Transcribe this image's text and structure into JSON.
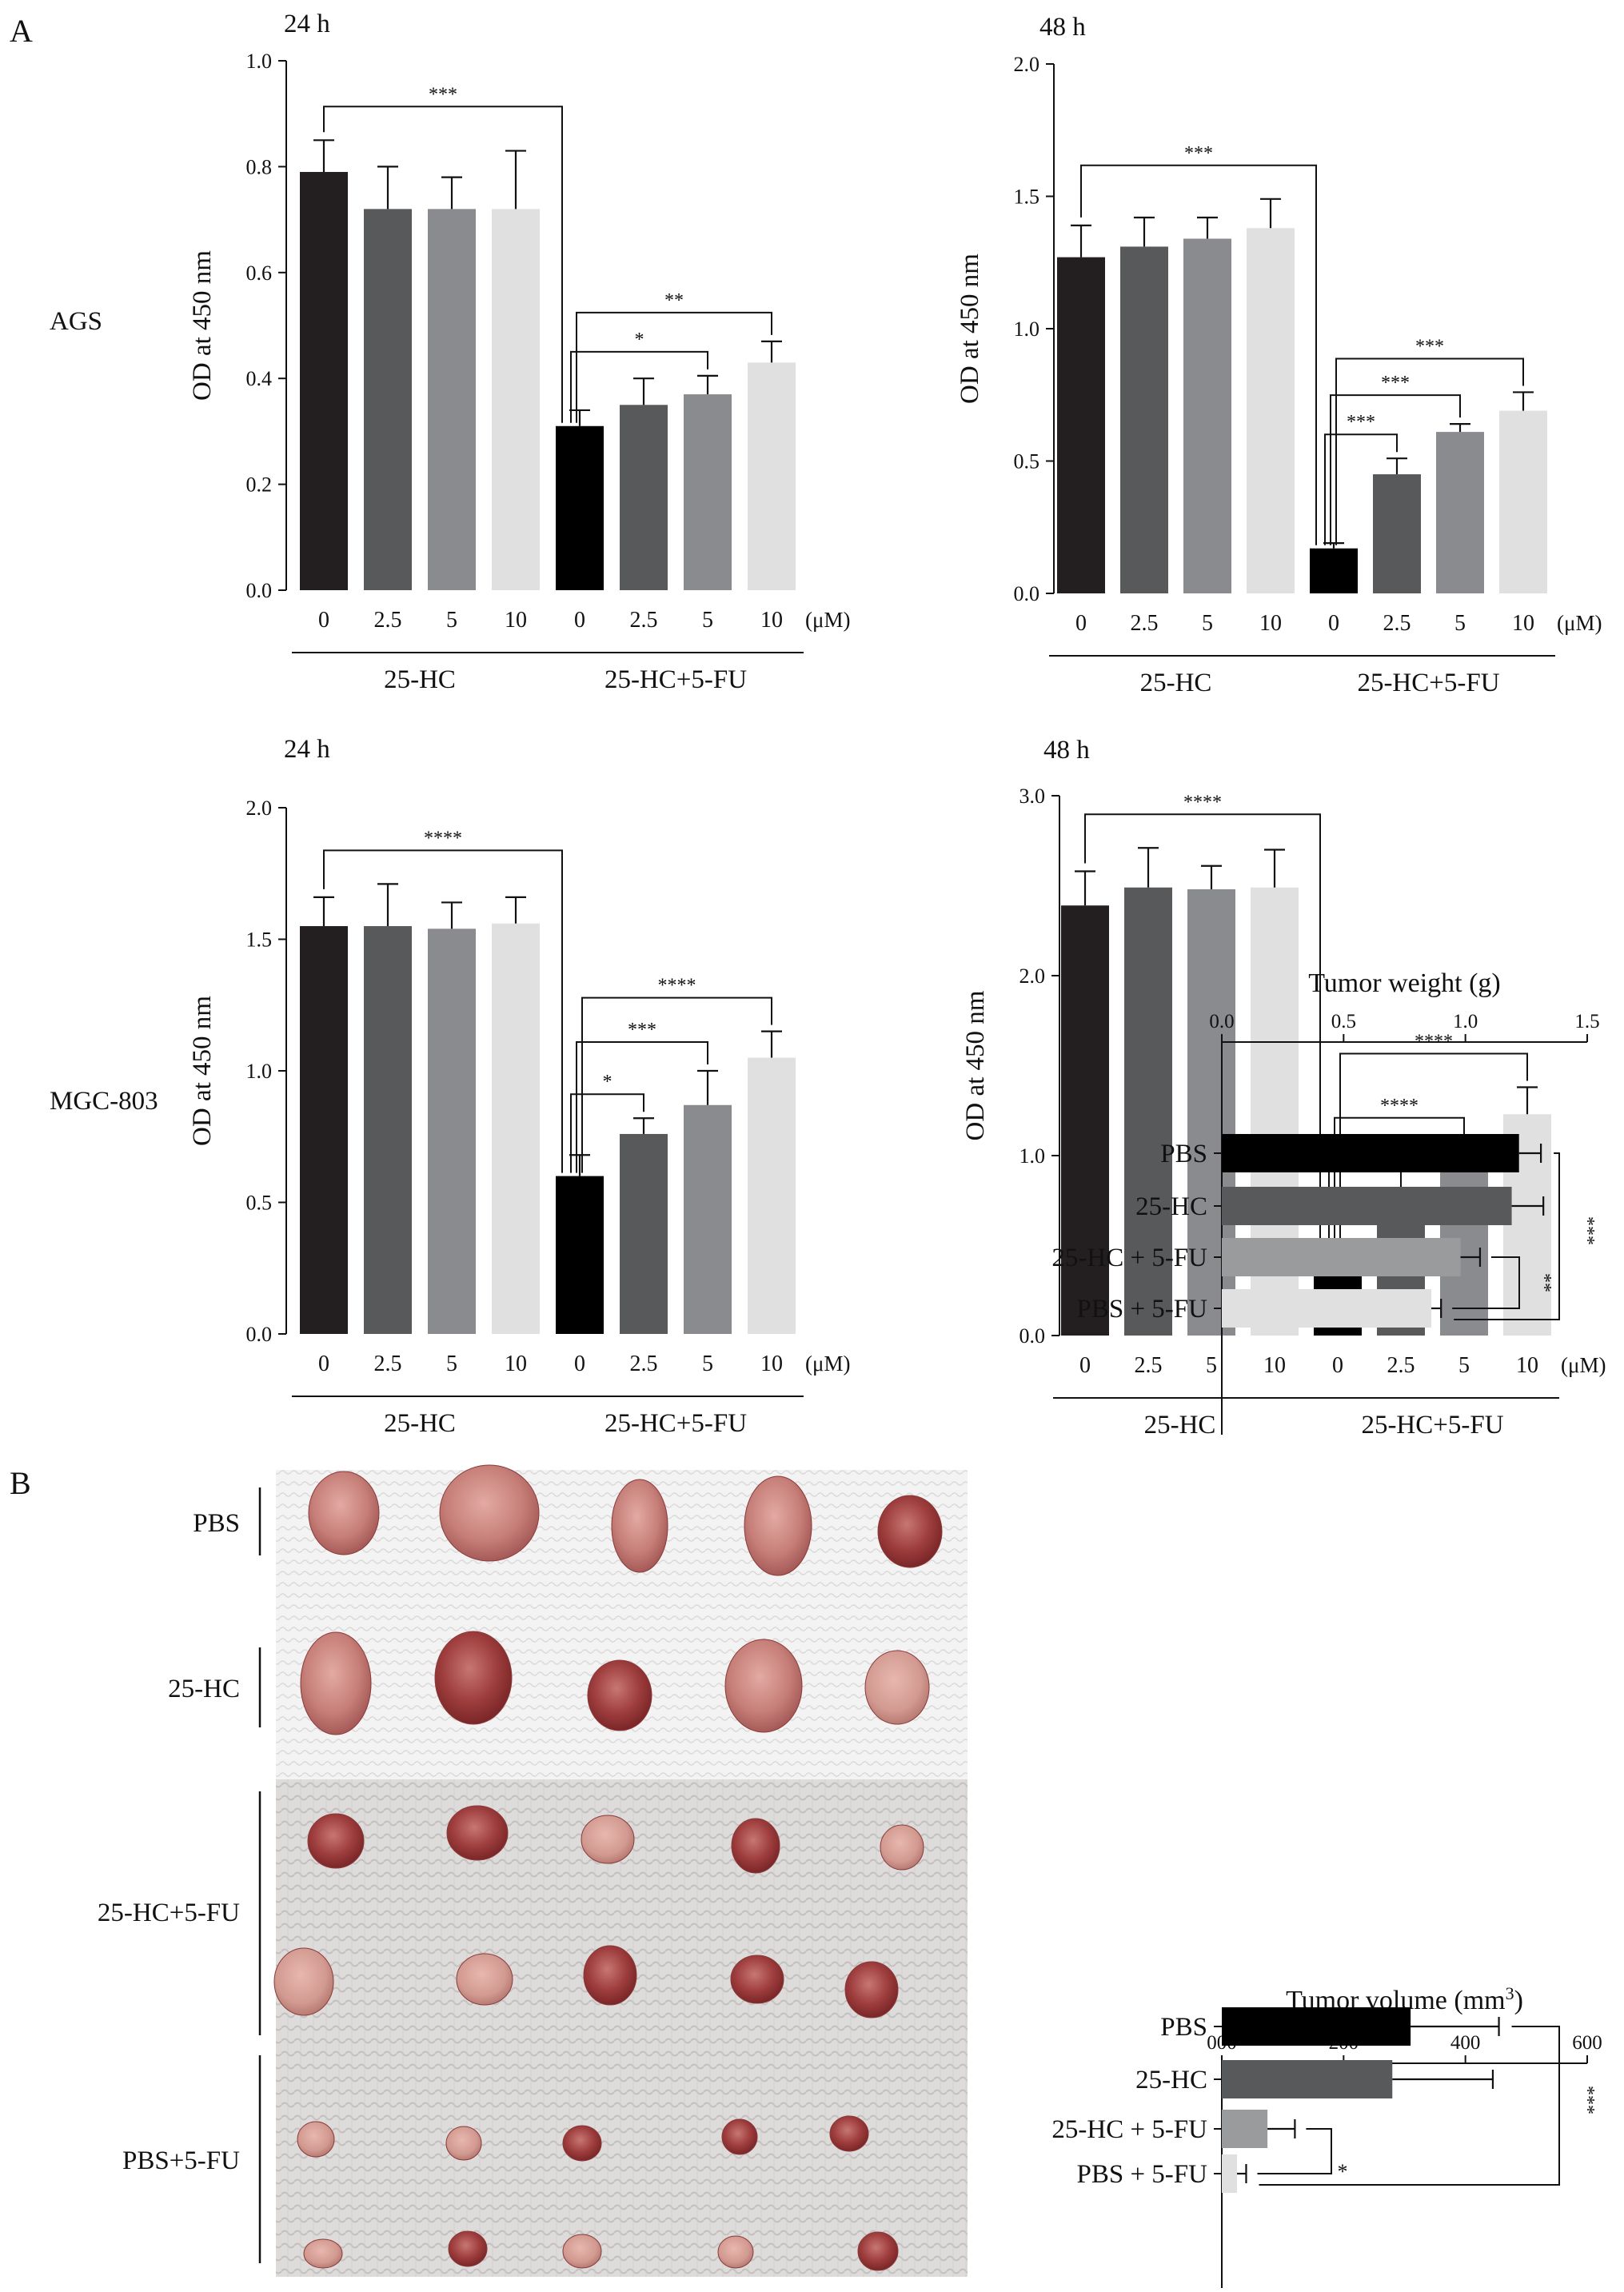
{
  "figure": {
    "panel_a_letter": "A",
    "panel_b_letter": "B",
    "row_labels": [
      "AGS",
      "MGC-803"
    ],
    "photo_labels": [
      "PBS",
      "25-HC",
      "25-HC+5-FU",
      "PBS+5-FU"
    ]
  },
  "colors": {
    "c1": "#231f20",
    "c2": "#58595b",
    "c3": "#8a8b8e",
    "c4": "#e0e0e0",
    "treat0": "#000000"
  },
  "chart_data": [
    {
      "id": "ags-24h",
      "type": "bar",
      "title": "24 h",
      "ylabel": "OD at 450 nm",
      "ylim": [
        0,
        1.0
      ],
      "yticks": [
        "0.0",
        "0.2",
        "0.4",
        "0.6",
        "0.8",
        "1.0"
      ],
      "categories": [
        "0",
        "2.5",
        "5",
        "10",
        "0",
        "2.5",
        "5",
        "10"
      ],
      "unit": "(μM)",
      "groups": [
        "25-HC",
        "25-HC+5-FU"
      ],
      "values": [
        0.79,
        0.72,
        0.72,
        0.72,
        0.31,
        0.35,
        0.37,
        0.43
      ],
      "errors": [
        0.06,
        0.08,
        0.06,
        0.11,
        0.03,
        0.05,
        0.035,
        0.04
      ],
      "significance": [
        {
          "from": 0,
          "to": 4,
          "label": "***"
        },
        {
          "from": 4,
          "to": 6,
          "label": "*"
        },
        {
          "from": 4,
          "to": 7,
          "label": "**"
        }
      ]
    },
    {
      "id": "ags-48h",
      "type": "bar",
      "title": "48 h",
      "ylabel": "OD at 450 nm",
      "ylim": [
        0,
        2.0
      ],
      "yticks": [
        "0.0",
        "0.5",
        "1.0",
        "1.5",
        "2.0"
      ],
      "categories": [
        "0",
        "2.5",
        "5",
        "10",
        "0",
        "2.5",
        "5",
        "10"
      ],
      "unit": "(μM)",
      "groups": [
        "25-HC",
        "25-HC+5-FU"
      ],
      "values": [
        1.27,
        1.31,
        1.34,
        1.38,
        0.17,
        0.45,
        0.61,
        0.69
      ],
      "errors": [
        0.12,
        0.11,
        0.08,
        0.11,
        0.02,
        0.06,
        0.03,
        0.07
      ],
      "significance": [
        {
          "from": 0,
          "to": 4,
          "label": "***"
        },
        {
          "from": 4,
          "to": 5,
          "label": "***"
        },
        {
          "from": 4,
          "to": 6,
          "label": "***"
        },
        {
          "from": 4,
          "to": 7,
          "label": "***"
        }
      ]
    },
    {
      "id": "mgc-24h",
      "type": "bar",
      "title": "24 h",
      "ylabel": "OD at 450 nm",
      "ylim": [
        0,
        2.0
      ],
      "yticks": [
        "0.0",
        "0.5",
        "1.0",
        "1.5",
        "2.0"
      ],
      "categories": [
        "0",
        "2.5",
        "5",
        "10",
        "0",
        "2.5",
        "5",
        "10"
      ],
      "unit": "(μM)",
      "groups": [
        "25-HC",
        "25-HC+5-FU"
      ],
      "values": [
        1.55,
        1.55,
        1.54,
        1.56,
        0.6,
        0.76,
        0.87,
        1.05
      ],
      "errors": [
        0.11,
        0.16,
        0.1,
        0.1,
        0.08,
        0.06,
        0.13,
        0.1
      ],
      "significance": [
        {
          "from": 0,
          "to": 4,
          "label": "****"
        },
        {
          "from": 4,
          "to": 5,
          "label": "*"
        },
        {
          "from": 4,
          "to": 6,
          "label": "***"
        },
        {
          "from": 4,
          "to": 7,
          "label": "****"
        }
      ]
    },
    {
      "id": "mgc-48h",
      "type": "bar",
      "title": "48 h",
      "ylabel": "OD at 450 nm",
      "ylim": [
        0,
        3.0
      ],
      "yticks": [
        "0.0",
        "1.0",
        "2.0",
        "3.0"
      ],
      "categories": [
        "0",
        "2.5",
        "5",
        "10",
        "0",
        "2.5",
        "5",
        "10"
      ],
      "unit": "(μM)",
      "groups": [
        "25-HC",
        "25-HC+5-FU"
      ],
      "values": [
        2.39,
        2.49,
        2.48,
        2.49,
        0.38,
        0.65,
        0.96,
        1.23
      ],
      "errors": [
        0.19,
        0.22,
        0.13,
        0.21,
        0.12,
        0.13,
        0.09,
        0.15
      ],
      "significance": [
        {
          "from": 0,
          "to": 4,
          "label": "****"
        },
        {
          "from": 4,
          "to": 5,
          "label": "**"
        },
        {
          "from": 4,
          "to": 6,
          "label": "****"
        },
        {
          "from": 4,
          "to": 7,
          "label": "****"
        }
      ]
    },
    {
      "id": "tumor-weight",
      "type": "bar",
      "orientation": "horizontal",
      "title": "Tumor weight (g)",
      "xlim": [
        0,
        1.5
      ],
      "xticks": [
        "0.0",
        "0.5",
        "1.0",
        "1.5"
      ],
      "categories": [
        "PBS",
        "25-HC",
        "25-HC + 5-FU",
        "PBS + 5-FU"
      ],
      "values": [
        1.22,
        1.19,
        0.98,
        0.86
      ],
      "errors": [
        0.09,
        0.13,
        0.08,
        0.04
      ],
      "significance": [
        {
          "from": 0,
          "to": 3,
          "label": "***"
        },
        {
          "from": 2,
          "to": 3,
          "label": "**"
        }
      ]
    },
    {
      "id": "tumor-volume",
      "type": "bar",
      "orientation": "horizontal",
      "title": "Tumor volume (mm",
      "title_sup": "3",
      "title_end": ")",
      "xlim": [
        0,
        600
      ],
      "xticks": [
        "000",
        "200",
        "400",
        "600"
      ],
      "categories": [
        "PBS",
        "25-HC",
        "25-HC + 5-FU",
        "PBS + 5-FU"
      ],
      "values": [
        310,
        280,
        75,
        25
      ],
      "errors": [
        145,
        165,
        45,
        15
      ],
      "significance": [
        {
          "from": 0,
          "to": 3,
          "label": "***"
        },
        {
          "from": 2,
          "to": 3,
          "label": "*"
        }
      ]
    }
  ]
}
